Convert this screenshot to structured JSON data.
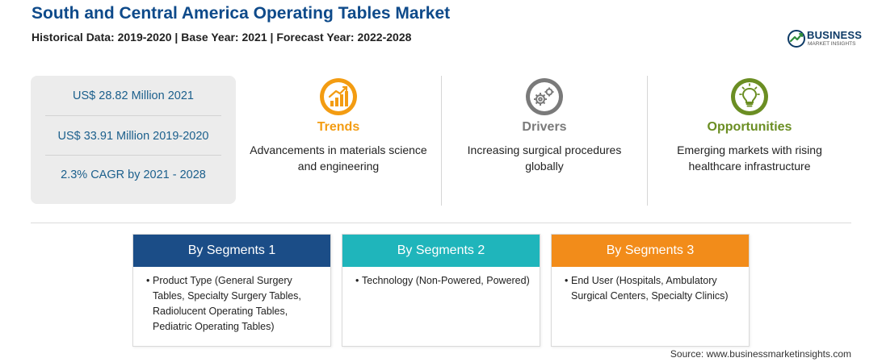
{
  "header": {
    "title": "South and Central America Operating Tables Market",
    "subtitle": "Historical Data: 2019-2020 | Base Year: 2021 | Forecast Year: 2022-2028"
  },
  "logo": {
    "main": "BUSINESS",
    "sub": "MARKET INSIGHTS"
  },
  "stats": [
    "US$ 28.82 Million 2021",
    "US$ 33.91 Million 2019-2020",
    "2.3% CAGR by 2021 - 2028"
  ],
  "factors": [
    {
      "title": "Trends",
      "desc": "Advancements in materials science and engineering",
      "color": "#f39c12",
      "icon": "growth-chart-icon"
    },
    {
      "title": "Drivers",
      "desc": "Increasing surgical procedures globally",
      "color": "#7a7a7a",
      "icon": "gears-icon"
    },
    {
      "title": "Opportunities",
      "desc": "Emerging markets with rising healthcare infrastructure",
      "color": "#6b8e23",
      "icon": "lightbulb-icon"
    }
  ],
  "segments": [
    {
      "title": "By Segments 1",
      "bullet": "•",
      "item": "Product Type (General Surgery Tables, Specialty Surgery Tables, Radiolucent Operating Tables, Pediatric Operating Tables)",
      "color": "#1b4d87"
    },
    {
      "title": "By Segments 2",
      "bullet": "•",
      "item": "Technology (Non-Powered, Powered)",
      "color": "#1fb5bb"
    },
    {
      "title": "By Segments 3",
      "bullet": "•",
      "item": "End User (Hospitals, Ambulatory Surgical Centers, Specialty Clinics)",
      "color": "#f28c1a"
    }
  ],
  "source": "Source: www.businessmarketinsights.com"
}
